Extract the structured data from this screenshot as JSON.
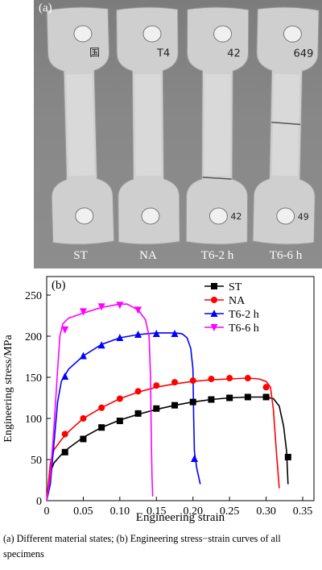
{
  "photo": {
    "panel_tag": "(a)",
    "specimens": [
      {
        "label": "ST",
        "mark_top": "国",
        "mark_bottom": ""
      },
      {
        "label": "NA",
        "mark_top": "T4",
        "mark_bottom": ""
      },
      {
        "label": "T6-2 h",
        "mark_top": "42",
        "mark_bottom": "42"
      },
      {
        "label": "T6-6 h",
        "mark_top": "649",
        "mark_bottom": "49"
      }
    ]
  },
  "chart_data": {
    "type": "line",
    "panel_tag": "(b)",
    "xlabel": "Engineering strain",
    "ylabel": "Engineering stress/MPa",
    "xlim": [
      0,
      0.35
    ],
    "ylim": [
      0,
      250
    ],
    "x_ticks": [
      "0",
      "0.05",
      "0.10",
      "0.15",
      "0.20",
      "0.25",
      "0.30",
      "0.35"
    ],
    "y_ticks": [
      "0",
      "50",
      "100",
      "150",
      "200",
      "250"
    ],
    "grid": false,
    "legend_position": "top-right",
    "series": [
      {
        "name": "ST",
        "color": "#000000",
        "marker": "square",
        "curve": [
          [
            0,
            0
          ],
          [
            0.005,
            35
          ],
          [
            0.01,
            46
          ],
          [
            0.02,
            56
          ],
          [
            0.03,
            64
          ],
          [
            0.05,
            77
          ],
          [
            0.075,
            89
          ],
          [
            0.1,
            98
          ],
          [
            0.125,
            105
          ],
          [
            0.15,
            111
          ],
          [
            0.175,
            116
          ],
          [
            0.2,
            120
          ],
          [
            0.225,
            123
          ],
          [
            0.25,
            125
          ],
          [
            0.275,
            126
          ],
          [
            0.3,
            126
          ],
          [
            0.31,
            124
          ],
          [
            0.318,
            115
          ],
          [
            0.324,
            90
          ],
          [
            0.328,
            60
          ],
          [
            0.33,
            20
          ]
        ],
        "markers": [
          [
            0.025,
            59
          ],
          [
            0.05,
            75
          ],
          [
            0.075,
            89
          ],
          [
            0.1,
            97
          ],
          [
            0.125,
            106
          ],
          [
            0.15,
            112
          ],
          [
            0.175,
            116
          ],
          [
            0.2,
            120
          ],
          [
            0.225,
            123
          ],
          [
            0.25,
            125
          ],
          [
            0.275,
            126
          ],
          [
            0.3,
            126
          ],
          [
            0.33,
            53
          ]
        ]
      },
      {
        "name": "NA",
        "color": "#ff0000",
        "marker": "circle",
        "curve": [
          [
            0,
            0
          ],
          [
            0.005,
            45
          ],
          [
            0.01,
            62
          ],
          [
            0.02,
            74
          ],
          [
            0.03,
            84
          ],
          [
            0.05,
            100
          ],
          [
            0.075,
            113
          ],
          [
            0.1,
            124
          ],
          [
            0.125,
            132
          ],
          [
            0.15,
            138
          ],
          [
            0.175,
            142
          ],
          [
            0.2,
            145
          ],
          [
            0.225,
            147
          ],
          [
            0.25,
            148
          ],
          [
            0.275,
            149
          ],
          [
            0.29,
            148
          ],
          [
            0.3,
            145
          ],
          [
            0.306,
            138
          ],
          [
            0.31,
            110
          ],
          [
            0.314,
            60
          ],
          [
            0.318,
            15
          ]
        ],
        "markers": [
          [
            0.025,
            81
          ],
          [
            0.05,
            100
          ],
          [
            0.075,
            113
          ],
          [
            0.1,
            124
          ],
          [
            0.125,
            133
          ],
          [
            0.15,
            140
          ],
          [
            0.175,
            144
          ],
          [
            0.2,
            146
          ],
          [
            0.225,
            148
          ],
          [
            0.25,
            149
          ],
          [
            0.275,
            149
          ],
          [
            0.3,
            138
          ]
        ]
      },
      {
        "name": "T6-2 h",
        "color": "#0000ff",
        "marker": "triangle",
        "curve": [
          [
            0,
            0
          ],
          [
            0.005,
            20
          ],
          [
            0.01,
            70
          ],
          [
            0.015,
            120
          ],
          [
            0.02,
            145
          ],
          [
            0.03,
            160
          ],
          [
            0.05,
            176
          ],
          [
            0.075,
            190
          ],
          [
            0.1,
            198
          ],
          [
            0.125,
            202
          ],
          [
            0.15,
            204
          ],
          [
            0.175,
            204
          ],
          [
            0.185,
            203
          ],
          [
            0.192,
            198
          ],
          [
            0.197,
            185
          ],
          [
            0.2,
            160
          ],
          [
            0.201,
            100
          ],
          [
            0.202,
            60
          ],
          [
            0.205,
            40
          ],
          [
            0.21,
            20
          ]
        ],
        "markers": [
          [
            0.025,
            151
          ],
          [
            0.05,
            176
          ],
          [
            0.075,
            189
          ],
          [
            0.1,
            198
          ],
          [
            0.125,
            202
          ],
          [
            0.15,
            203
          ],
          [
            0.175,
            203
          ],
          [
            0.202,
            51
          ]
        ]
      },
      {
        "name": "T6-6 h",
        "color": "#ff00ff",
        "marker": "triangle-down",
        "curve": [
          [
            0,
            0
          ],
          [
            0.005,
            30
          ],
          [
            0.01,
            90
          ],
          [
            0.015,
            160
          ],
          [
            0.018,
            200
          ],
          [
            0.022,
            215
          ],
          [
            0.03,
            222
          ],
          [
            0.05,
            228
          ],
          [
            0.075,
            235
          ],
          [
            0.1,
            239
          ],
          [
            0.11,
            239
          ],
          [
            0.125,
            232
          ],
          [
            0.135,
            220
          ],
          [
            0.14,
            200
          ],
          [
            0.142,
            150
          ],
          [
            0.143,
            80
          ],
          [
            0.144,
            30
          ],
          [
            0.145,
            5
          ]
        ],
        "markers": [
          [
            0.025,
            208
          ],
          [
            0.05,
            230
          ],
          [
            0.075,
            236
          ],
          [
            0.1,
            238
          ],
          [
            0.125,
            232
          ]
        ]
      }
    ]
  },
  "caption": "(a) Different material states; (b) Engineering stress−strain curves of all specimens"
}
